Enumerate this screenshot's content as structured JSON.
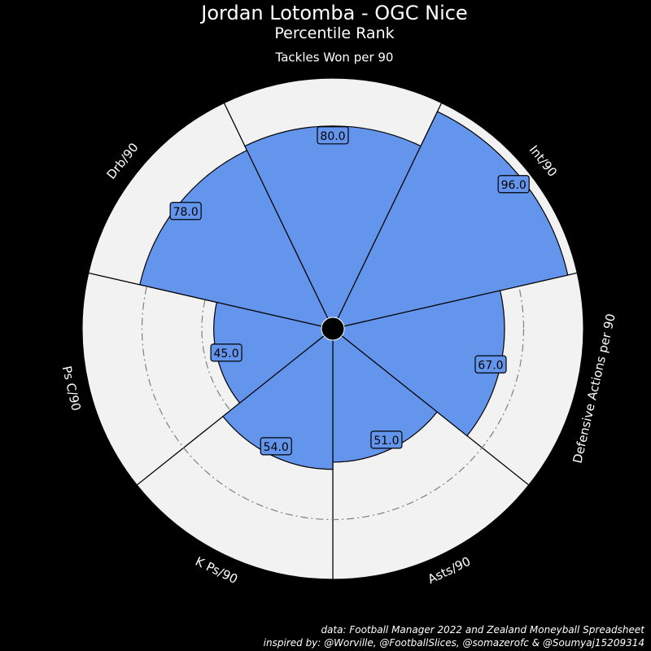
{
  "chart_data": {
    "type": "pie",
    "subtype": "polar-bar",
    "title": "Jordan Lotomba - OGC Nice",
    "subtitle": "Percentile Rank",
    "params": [
      "Tackles Won per 90",
      "Int/90",
      "Defensive Actions per 90",
      "Asts/90",
      "K Ps/90",
      "Ps C/90",
      "Drb/90"
    ],
    "values": [
      80.0,
      96.0,
      67.0,
      51.0,
      54.0,
      45.0,
      78.0
    ],
    "value_labels": [
      "80.0",
      "96.0",
      "67.0",
      "51.0",
      "54.0",
      "45.0",
      "78.0"
    ],
    "range": [
      0,
      100
    ],
    "colors": {
      "background": "#000000",
      "slice_background": "#f2f2f2",
      "slice": "#6495ed",
      "edge": "#000000",
      "grid": "#808080",
      "text": "#ffffff"
    }
  },
  "credits": {
    "line1": "data: Football Manager 2022 and Zealand Moneyball Spreadsheet",
    "line2": "inspired by: @Worville, @FootballSlices, @somazerofc & @Soumyaj15209314"
  }
}
